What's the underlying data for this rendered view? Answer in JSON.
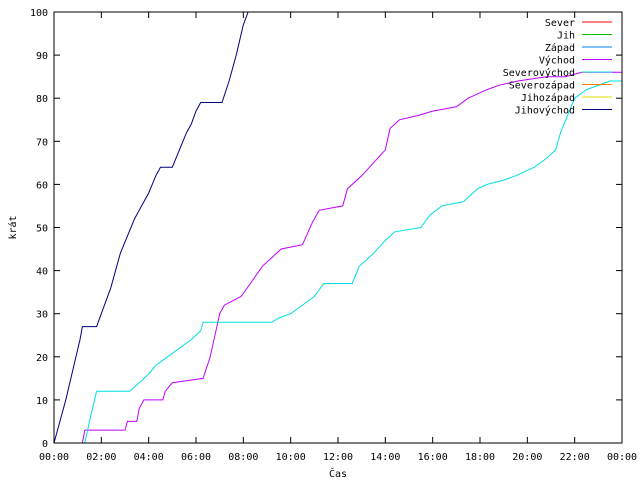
{
  "chart_data": {
    "type": "line",
    "title": "",
    "xlabel": "Čas",
    "ylabel": "krát",
    "xlim": [
      0,
      24
    ],
    "ylim": [
      0,
      100
    ],
    "x_ticks": [
      {
        "value": 0,
        "label": "00:00"
      },
      {
        "value": 2,
        "label": "02:00"
      },
      {
        "value": 4,
        "label": "04:00"
      },
      {
        "value": 6,
        "label": "06:00"
      },
      {
        "value": 8,
        "label": "08:00"
      },
      {
        "value": 10,
        "label": "10:00"
      },
      {
        "value": 12,
        "label": "12:00"
      },
      {
        "value": 14,
        "label": "14:00"
      },
      {
        "value": 16,
        "label": "16:00"
      },
      {
        "value": 18,
        "label": "18:00"
      },
      {
        "value": 20,
        "label": "20:00"
      },
      {
        "value": 22,
        "label": "22:00"
      },
      {
        "value": 24,
        "label": "00:00"
      }
    ],
    "y_ticks": [
      {
        "value": 0,
        "label": "0"
      },
      {
        "value": 10,
        "label": "10"
      },
      {
        "value": 20,
        "label": "20"
      },
      {
        "value": 30,
        "label": "30"
      },
      {
        "value": 40,
        "label": "40"
      },
      {
        "value": 50,
        "label": "50"
      },
      {
        "value": 60,
        "label": "60"
      },
      {
        "value": 70,
        "label": "70"
      },
      {
        "value": 80,
        "label": "80"
      },
      {
        "value": 90,
        "label": "90"
      },
      {
        "value": 100,
        "label": "100"
      }
    ],
    "grid": false,
    "legend": "top-right",
    "series": [
      {
        "name": "Sever",
        "color": "#ff0000",
        "points": []
      },
      {
        "name": "Jih",
        "color": "#00c000",
        "points": []
      },
      {
        "name": "Západ",
        "color": "#0080ff",
        "points": []
      },
      {
        "name": "Východ",
        "color": "#c000ff",
        "points": [
          [
            1.2,
            0
          ],
          [
            1.3,
            3
          ],
          [
            3.0,
            3
          ],
          [
            3.1,
            5
          ],
          [
            3.5,
            5
          ],
          [
            3.6,
            8
          ],
          [
            3.8,
            10
          ],
          [
            4.6,
            10
          ],
          [
            4.7,
            12
          ],
          [
            5.0,
            14
          ],
          [
            6.3,
            15
          ],
          [
            6.6,
            20
          ],
          [
            7.0,
            30
          ],
          [
            7.2,
            32
          ],
          [
            7.9,
            34
          ],
          [
            8.3,
            37
          ],
          [
            8.8,
            41
          ],
          [
            9.2,
            43
          ],
          [
            9.6,
            45
          ],
          [
            10.5,
            46
          ],
          [
            10.9,
            51
          ],
          [
            11.2,
            54
          ],
          [
            12.2,
            55
          ],
          [
            12.4,
            59
          ],
          [
            13.0,
            62
          ],
          [
            13.5,
            65
          ],
          [
            14.0,
            68
          ],
          [
            14.2,
            73
          ],
          [
            14.6,
            75
          ],
          [
            15.4,
            76
          ],
          [
            16.0,
            77
          ],
          [
            17.0,
            78
          ],
          [
            17.5,
            80
          ],
          [
            18.3,
            82
          ],
          [
            18.8,
            83
          ],
          [
            19.6,
            84
          ],
          [
            20.8,
            85
          ],
          [
            21.6,
            85
          ],
          [
            22.3,
            86
          ],
          [
            24.0,
            86
          ]
        ]
      },
      {
        "name": "Severovýchod",
        "color": "#00e0e0",
        "points": [
          [
            1.3,
            0
          ],
          [
            1.5,
            5
          ],
          [
            1.8,
            12
          ],
          [
            3.2,
            12
          ],
          [
            3.6,
            14
          ],
          [
            4.0,
            16
          ],
          [
            4.3,
            18
          ],
          [
            4.8,
            20
          ],
          [
            5.3,
            22
          ],
          [
            5.8,
            24
          ],
          [
            6.2,
            26
          ],
          [
            6.3,
            28
          ],
          [
            9.2,
            28
          ],
          [
            9.5,
            29
          ],
          [
            10.0,
            30
          ],
          [
            10.5,
            32
          ],
          [
            11.0,
            34
          ],
          [
            11.4,
            37
          ],
          [
            12.6,
            37
          ],
          [
            12.9,
            41
          ],
          [
            13.5,
            44
          ],
          [
            14.0,
            47
          ],
          [
            14.4,
            49
          ],
          [
            15.5,
            50
          ],
          [
            15.9,
            53
          ],
          [
            16.4,
            55
          ],
          [
            17.3,
            56
          ],
          [
            17.9,
            59
          ],
          [
            18.3,
            60
          ],
          [
            19.0,
            61
          ],
          [
            19.5,
            62
          ],
          [
            20.3,
            64
          ],
          [
            20.8,
            66
          ],
          [
            21.2,
            68
          ],
          [
            21.4,
            72
          ],
          [
            21.7,
            76
          ],
          [
            22.0,
            80
          ],
          [
            22.5,
            82
          ],
          [
            23.5,
            84
          ],
          [
            24.0,
            84
          ]
        ]
      },
      {
        "name": "Severozápad",
        "color": "#ff8000",
        "points": []
      },
      {
        "name": "Jihozápad",
        "color": "#e0e000",
        "points": []
      },
      {
        "name": "Jihovýchod",
        "color": "#000080",
        "points": [
          [
            0,
            0
          ],
          [
            0.5,
            10
          ],
          [
            1.1,
            24
          ],
          [
            1.2,
            27
          ],
          [
            1.8,
            27
          ],
          [
            2.0,
            30
          ],
          [
            2.4,
            36
          ],
          [
            2.8,
            44
          ],
          [
            3.1,
            48
          ],
          [
            3.4,
            52
          ],
          [
            3.7,
            55
          ],
          [
            4.0,
            58
          ],
          [
            4.3,
            62
          ],
          [
            4.5,
            64
          ],
          [
            5.0,
            64
          ],
          [
            5.3,
            68
          ],
          [
            5.6,
            72
          ],
          [
            5.8,
            74
          ],
          [
            6.0,
            77
          ],
          [
            6.2,
            79
          ],
          [
            7.1,
            79
          ],
          [
            7.4,
            84
          ],
          [
            7.7,
            90
          ],
          [
            8.0,
            97
          ],
          [
            8.2,
            100
          ]
        ]
      }
    ]
  }
}
